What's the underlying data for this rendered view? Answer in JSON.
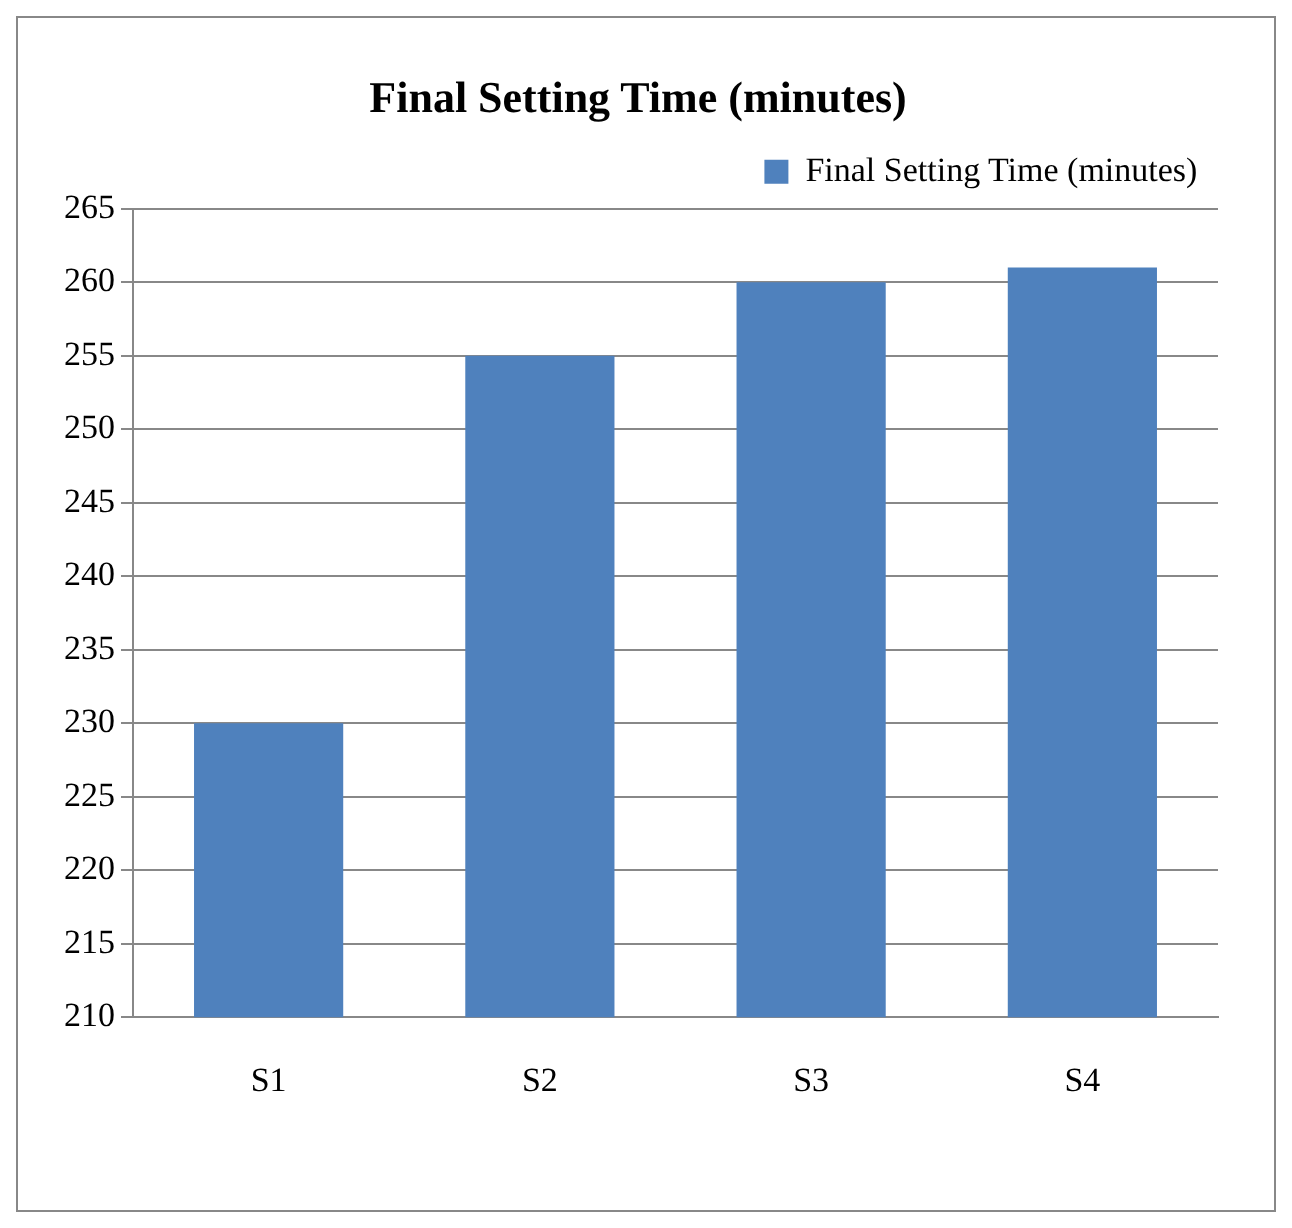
{
  "chart_data": {
    "type": "bar",
    "title": "Final Setting Time (minutes)",
    "categories": [
      "S1",
      "S2",
      "S3",
      "S4"
    ],
    "series": [
      {
        "name": "Final Setting Time (minutes)",
        "color": "#4f81bd",
        "values": [
          230,
          255,
          260,
          261
        ]
      }
    ],
    "ylim": [
      210,
      265
    ],
    "yticks": [
      210,
      215,
      220,
      225,
      230,
      235,
      240,
      245,
      250,
      255,
      260,
      265
    ],
    "grid": "y",
    "legend": "top"
  }
}
